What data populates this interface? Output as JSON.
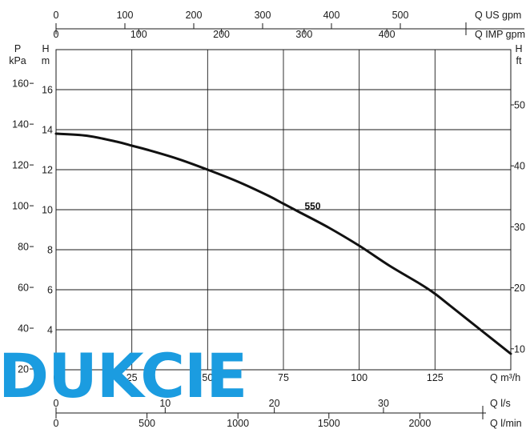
{
  "watermark": "DUKCIE",
  "chart_data": {
    "type": "line",
    "series": [
      {
        "name": "550",
        "x": [
          0,
          10,
          20,
          25,
          30,
          40,
          50,
          60,
          70,
          75,
          80,
          90,
          100,
          110,
          120,
          125,
          130,
          140,
          150
        ],
        "y": [
          13.8,
          13.7,
          13.4,
          13.2,
          13.0,
          12.55,
          12.0,
          11.4,
          10.7,
          10.3,
          9.9,
          9.1,
          8.2,
          7.2,
          6.3,
          5.8,
          5.2,
          4.0,
          2.8
        ]
      }
    ],
    "axes": {
      "q_m3h": {
        "label": "Q m³/h",
        "ticks": [
          "25",
          "50",
          "75",
          "100",
          "125"
        ],
        "tick_values": [
          25,
          50,
          75,
          100,
          125
        ],
        "range": [
          0,
          150
        ]
      },
      "h_m": {
        "title": "H",
        "unit": "m",
        "ticks": [
          "4",
          "6",
          "8",
          "10",
          "12",
          "14",
          "16"
        ],
        "tick_values": [
          4,
          6,
          8,
          10,
          12,
          14,
          16
        ],
        "range": [
          2,
          18
        ]
      },
      "p_kpa": {
        "title": "P",
        "unit": "kPa",
        "ticks": [
          "20",
          "40",
          "60",
          "80",
          "100",
          "120",
          "140",
          "160"
        ],
        "tick_values": [
          20,
          40,
          60,
          80,
          100,
          120,
          140,
          160
        ]
      },
      "h_ft": {
        "title": "H",
        "unit": "ft",
        "ticks": [
          "10",
          "20",
          "30",
          "40",
          "50"
        ],
        "tick_values": [
          10,
          20,
          30,
          40,
          50
        ]
      },
      "q_us_gpm": {
        "label": "Q US gpm",
        "ticks": [
          "0",
          "100",
          "200",
          "300",
          "400",
          "500"
        ],
        "tick_values": [
          0,
          100,
          200,
          300,
          400,
          500
        ]
      },
      "q_imp_gpm": {
        "label": "Q IMP gpm",
        "ticks": [
          "0",
          "100",
          "200",
          "300",
          "400"
        ],
        "tick_values": [
          0,
          100,
          200,
          300,
          400
        ]
      },
      "q_ls": {
        "label": "Q l/s",
        "ticks": [
          "0",
          "10",
          "20",
          "30"
        ],
        "tick_values": [
          0,
          10,
          20,
          30
        ]
      },
      "q_lmin": {
        "label": "Q l/min",
        "ticks": [
          "0",
          "500",
          "1000",
          "1500",
          "2000"
        ],
        "tick_values": [
          0,
          500,
          1000,
          1500,
          2000
        ]
      }
    },
    "grid": true,
    "legend": "none"
  }
}
